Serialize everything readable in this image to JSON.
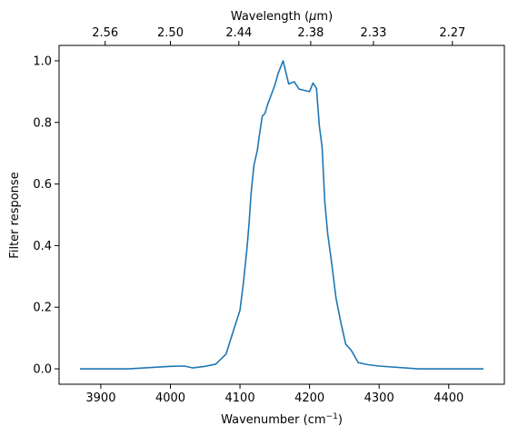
{
  "chart_data": {
    "type": "line",
    "xlabel": "Wavenumber (cm",
    "xlabel_sup": "−1",
    "xlabel_end": ")",
    "ylabel": "Filter response",
    "top_xlabel": "Wavelength (",
    "top_xlabel_mu": "μ",
    "top_xlabel_end": "m)",
    "xlim": [
      3840,
      4480
    ],
    "ylim": [
      -0.05,
      1.05
    ],
    "x_ticks": [
      3900,
      4000,
      4100,
      4200,
      4300,
      4400
    ],
    "x_tick_labels": [
      "3900",
      "4000",
      "4100",
      "4200",
      "4300",
      "4400"
    ],
    "y_ticks": [
      0.0,
      0.2,
      0.4,
      0.6,
      0.8,
      1.0
    ],
    "y_tick_labels": [
      "0.0",
      "0.2",
      "0.4",
      "0.6",
      "0.8",
      "1.0"
    ],
    "top_x_ticks": [
      2.56,
      2.5,
      2.44,
      2.38,
      2.33,
      2.27
    ],
    "top_x_tick_labels": [
      "2.56",
      "2.50",
      "2.44",
      "2.38",
      "2.33",
      "2.27"
    ],
    "grid": false,
    "series": [
      {
        "color": "#1f77b4",
        "x": [
          3870,
          3940,
          4000,
          4020,
          4032,
          4050,
          4065,
          4080,
          4090,
          4100,
          4105,
          4110,
          4113,
          4116,
          4120,
          4125,
          4128,
          4132,
          4136,
          4140,
          4145,
          4150,
          4155,
          4162,
          4170,
          4178,
          4185,
          4200,
          4205,
          4210,
          4214,
          4218,
          4222,
          4226,
          4232,
          4238,
          4245,
          4252,
          4260,
          4270,
          4285,
          4300,
          4356,
          4450
        ],
        "y": [
          0.0,
          0.0,
          0.008,
          0.009,
          0.003,
          0.008,
          0.015,
          0.048,
          0.12,
          0.19,
          0.28,
          0.39,
          0.47,
          0.57,
          0.66,
          0.71,
          0.76,
          0.82,
          0.83,
          0.86,
          0.89,
          0.92,
          0.96,
          1.0,
          0.925,
          0.932,
          0.908,
          0.9,
          0.928,
          0.91,
          0.79,
          0.72,
          0.54,
          0.44,
          0.34,
          0.23,
          0.15,
          0.08,
          0.06,
          0.02,
          0.013,
          0.009,
          0.0,
          0.0
        ]
      }
    ]
  }
}
